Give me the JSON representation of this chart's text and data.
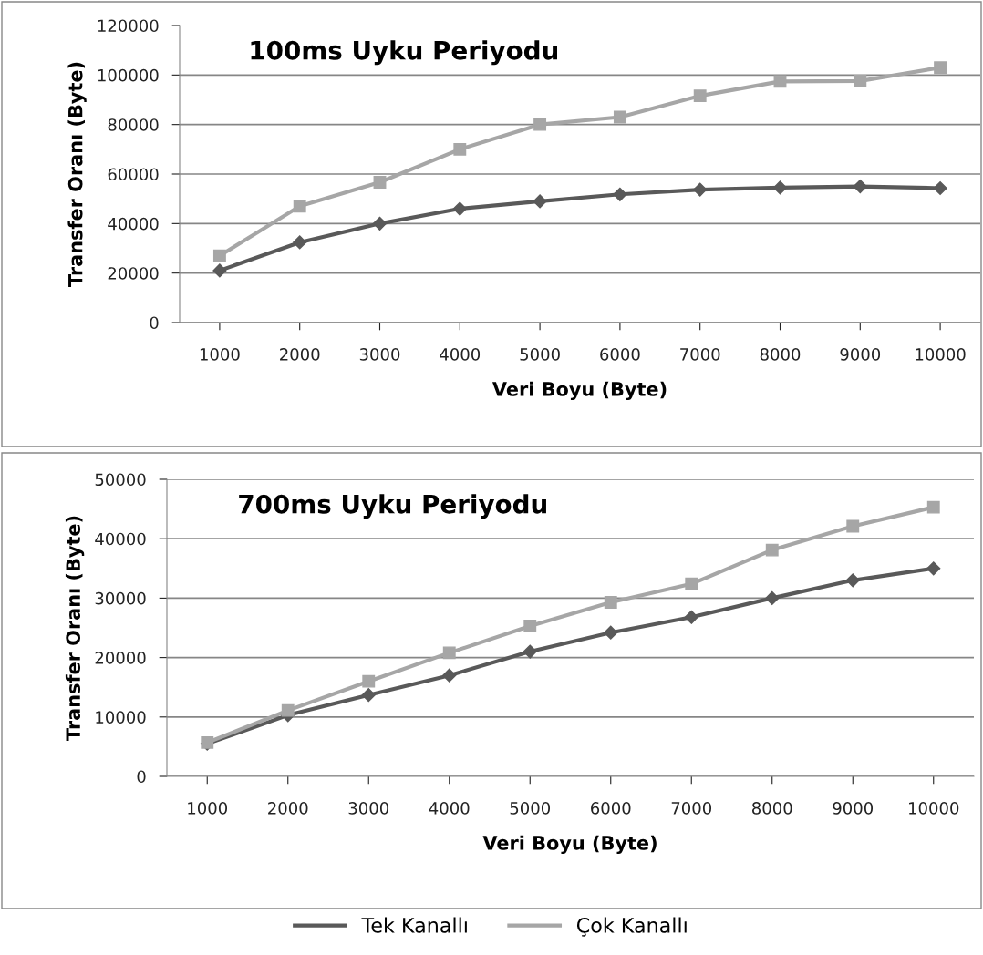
{
  "chart_data": [
    {
      "type": "line",
      "title": "100ms Uyku Periyodu",
      "xlabel": "Veri Boyu (Byte)",
      "ylabel": "Transfer Oranı (Byte)",
      "categories": [
        "1000",
        "2000",
        "3000",
        "4000",
        "5000",
        "6000",
        "7000",
        "8000",
        "9000",
        "10000"
      ],
      "series": [
        {
          "name": "Tek Kanallı",
          "color": "#595959",
          "marker": "diamond",
          "values": [
            21000,
            32400,
            40000,
            46000,
            49000,
            51800,
            53700,
            54500,
            55000,
            54300
          ]
        },
        {
          "name": "Çok Kanallı",
          "color": "#a6a6a6",
          "marker": "square",
          "values": [
            27000,
            47000,
            56700,
            70000,
            80000,
            83000,
            91600,
            97400,
            97600,
            103000
          ]
        }
      ],
      "ylim": [
        0,
        120000
      ],
      "yticks": [
        0,
        20000,
        40000,
        60000,
        80000,
        100000,
        120000
      ],
      "grid": "y",
      "legend": "bottom"
    },
    {
      "type": "line",
      "title": "700ms Uyku Periyodu",
      "xlabel": "Veri Boyu (Byte)",
      "ylabel": "Transfer Oranı (Byte)",
      "categories": [
        "1000",
        "2000",
        "3000",
        "4000",
        "5000",
        "6000",
        "7000",
        "8000",
        "9000",
        "10000"
      ],
      "series": [
        {
          "color": "#595959",
          "marker": "diamond",
          "values": [
            5500,
            10300,
            13700,
            17000,
            21000,
            24200,
            26800,
            30000,
            33000,
            35000
          ]
        },
        {
          "color": "#a6a6a6",
          "marker": "square",
          "values": [
            5700,
            11100,
            16000,
            20800,
            25300,
            29300,
            32400,
            38100,
            42100,
            45300
          ]
        }
      ],
      "ylim": [
        0,
        50000
      ],
      "yticks": [
        0,
        10000,
        20000,
        30000,
        40000,
        50000
      ],
      "grid": "y"
    }
  ]
}
